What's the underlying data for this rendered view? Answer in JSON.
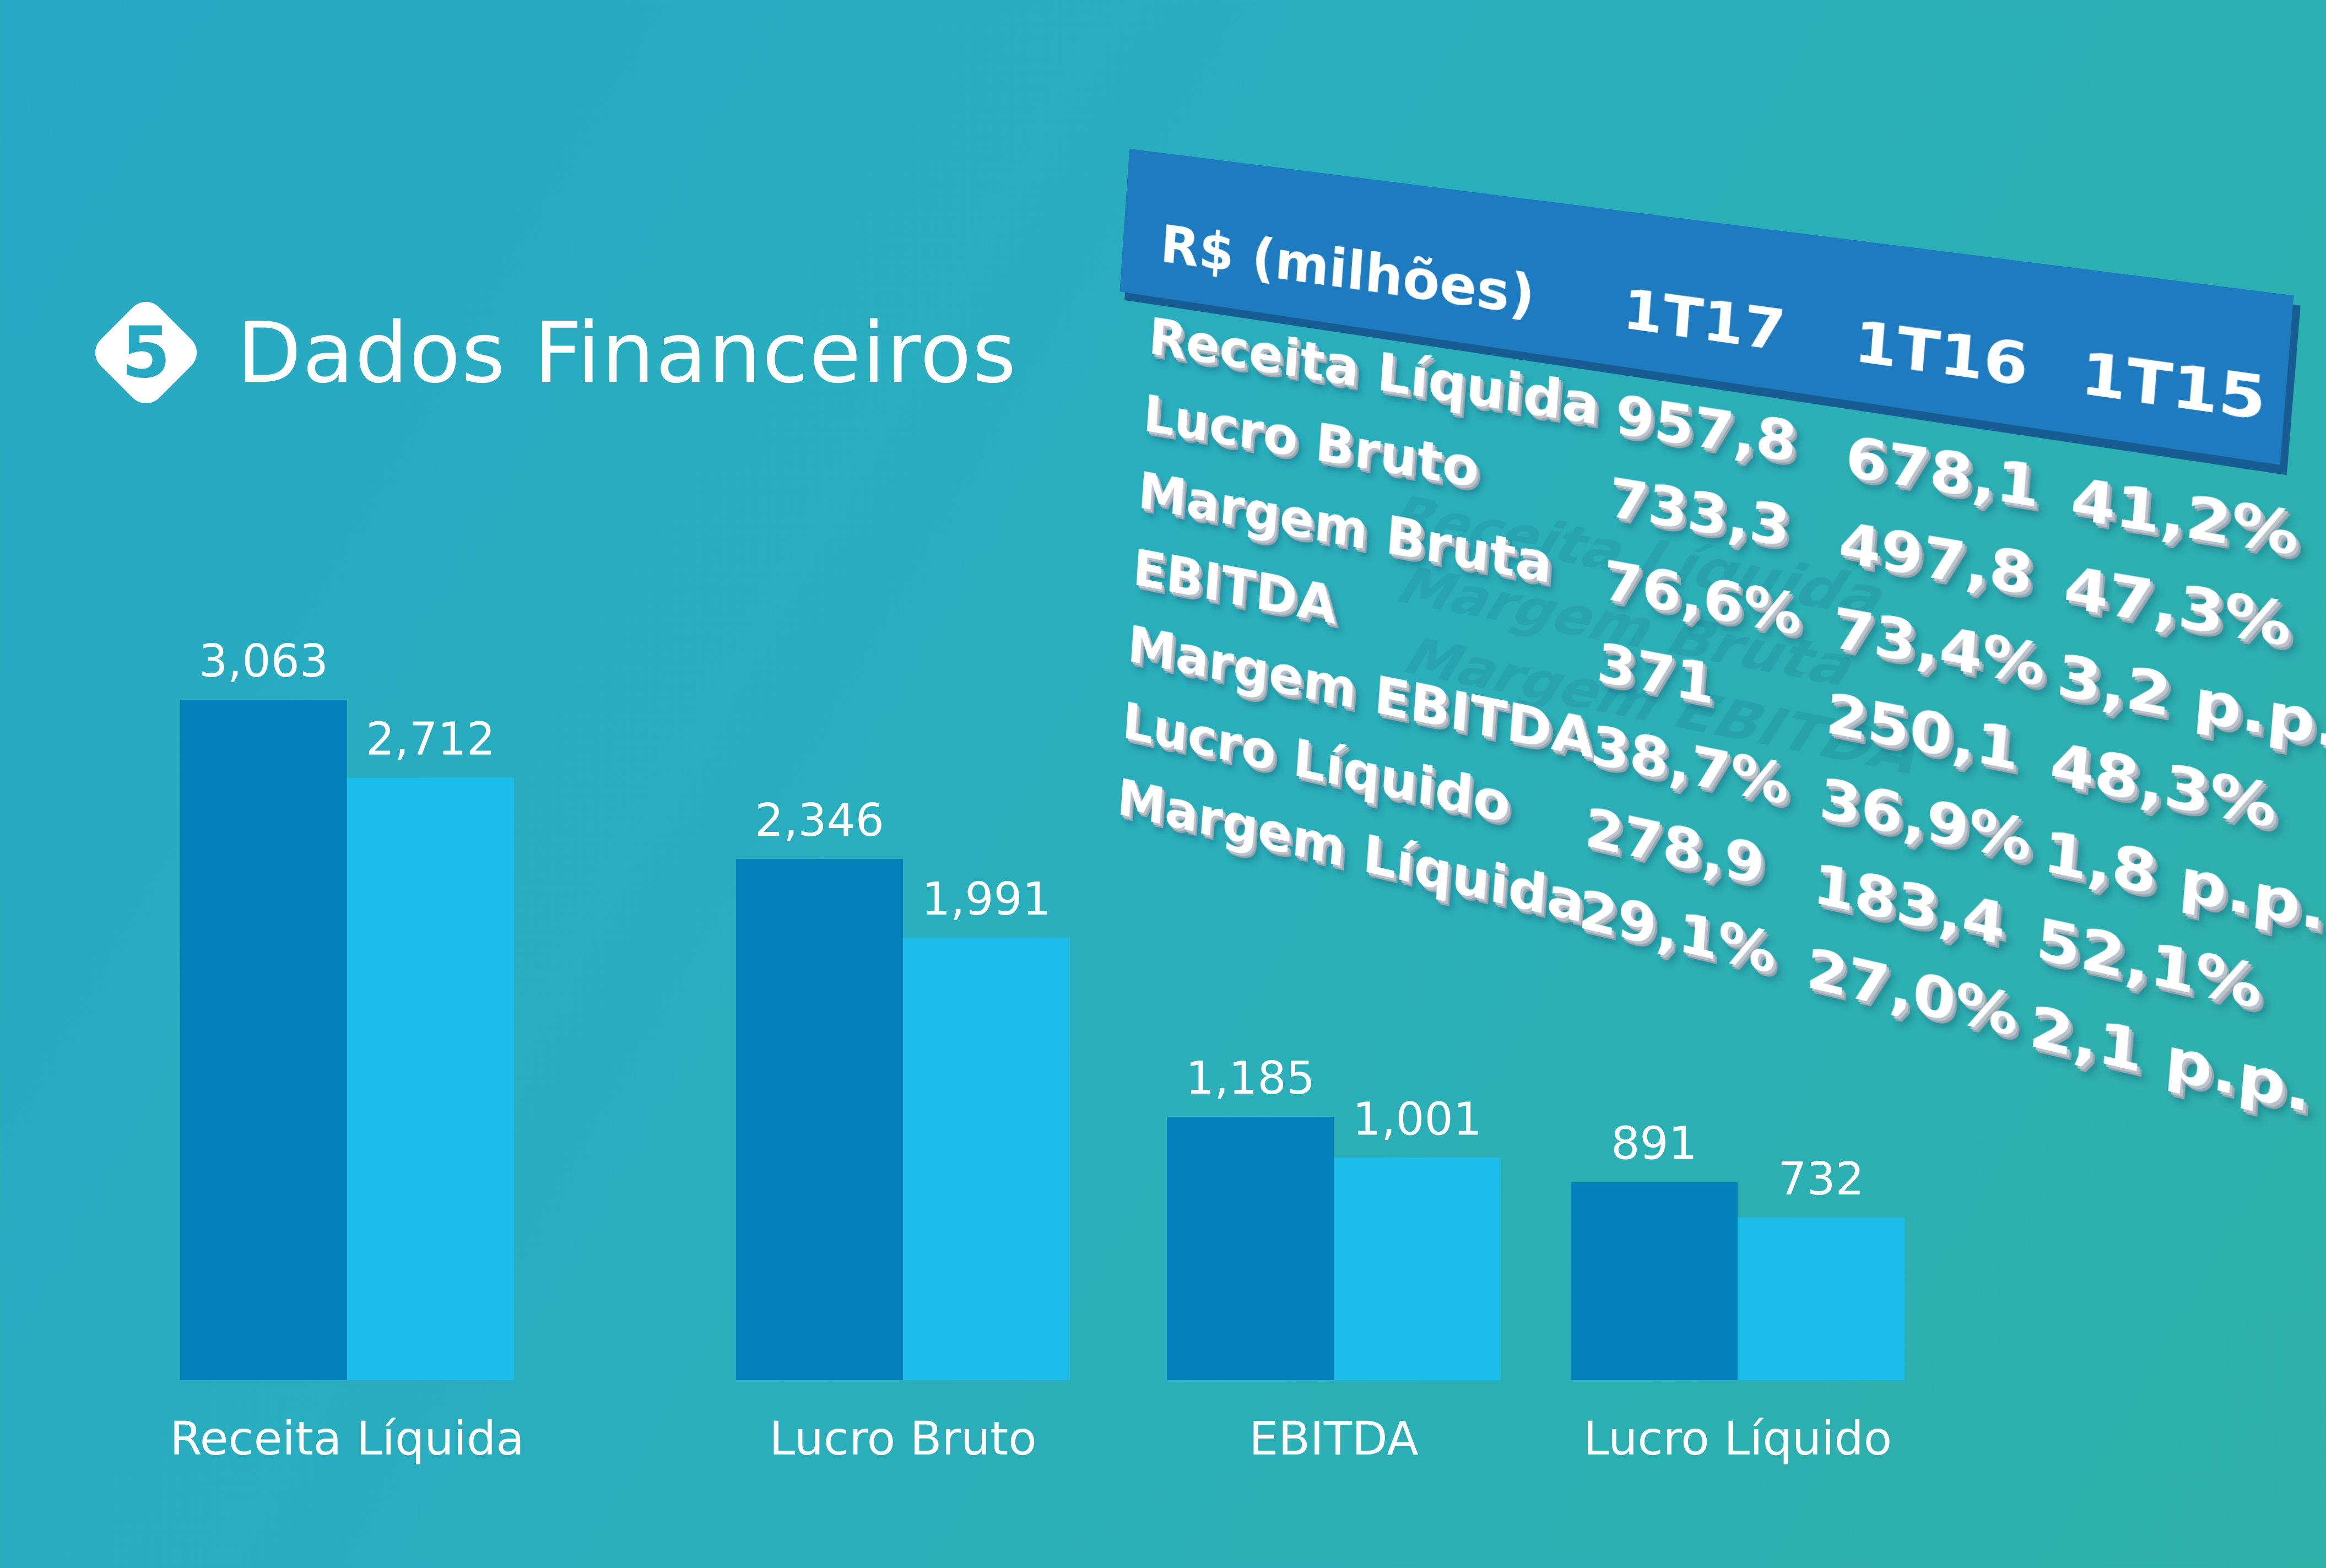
{
  "header": {
    "section_number": "5",
    "title": "Dados Financeiros"
  },
  "table": {
    "header": [
      "R$ (milhões)",
      "1T17",
      "1T16",
      "1T15"
    ],
    "rows": [
      {
        "label": "Receita Líquida",
        "v1": "957,8",
        "v2": "678,1",
        "v3": "41,2%"
      },
      {
        "label": "Lucro Bruto",
        "v1": "733,3",
        "v2": "497,8",
        "v3": "47,3%"
      },
      {
        "label": "Margem Bruta",
        "v1": "76,6%",
        "v2": "73,4%",
        "v3": "3,2 p.p."
      },
      {
        "label": "EBITDA",
        "v1": "371",
        "v2": "250,1",
        "v3": "48,3%"
      },
      {
        "label": "Margem EBITDA",
        "v1": "38,7%",
        "v2": "36,9%",
        "v3": "1,8 p.p."
      },
      {
        "label": "Lucro Líquido",
        "v1": "278,9",
        "v2": "183,4",
        "v3": "52,1%"
      },
      {
        "label": "Margem Líquida",
        "v1": "29,1%",
        "v2": "27,0%",
        "v3": "2,1 p.p."
      }
    ]
  },
  "chart_data": {
    "type": "bar",
    "categories": [
      "Receita Líquida",
      "Lucro Bruto",
      "EBITDA",
      "Lucro Líquido"
    ],
    "series": [
      {
        "values": [
          3063,
          2346,
          1185,
          891
        ],
        "value_labels": [
          "3,063",
          "2,346",
          "1,185",
          "891"
        ],
        "color": "#0382bb"
      },
      {
        "values": [
          2712,
          1991,
          1001,
          732
        ],
        "value_labels": [
          "2,712",
          "1,991",
          "1,001",
          "732"
        ],
        "color": "#1dbde9"
      }
    ],
    "ylim": [
      0,
      3063
    ],
    "grid": false,
    "legend": "none",
    "title": "",
    "xlabel": "",
    "ylabel": ""
  }
}
